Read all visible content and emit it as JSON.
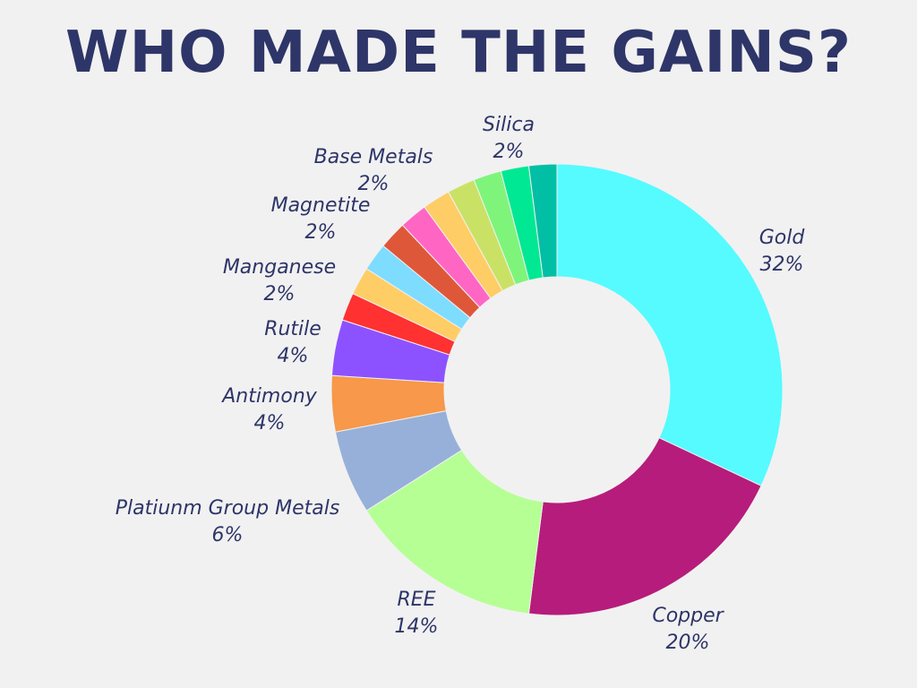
{
  "chart_data": {
    "type": "pie",
    "title": "WHO MADE THE GAINS?",
    "donut": true,
    "slices": [
      {
        "name": "Gold",
        "value_label": "32%",
        "value": 32,
        "color": "#55fbff"
      },
      {
        "name": "Copper",
        "value_label": "20%",
        "value": 20,
        "color": "#b61c7b"
      },
      {
        "name": "REE",
        "value_label": "14%",
        "value": 14,
        "color": "#b5ff95"
      },
      {
        "name": "Platiunm Group Metals",
        "value_label": "6%",
        "value": 6,
        "color": "#97b0d9"
      },
      {
        "name": "Antimony",
        "value_label": "4%",
        "value": 4,
        "color": "#f7984a"
      },
      {
        "name": "Rutile",
        "value_label": "4%",
        "value": 4,
        "color": "#8d52ff"
      },
      {
        "name": "",
        "value_label": "",
        "value": 2,
        "color": "#ff3131"
      },
      {
        "name": "Manganese",
        "value_label": "2%",
        "value": 2,
        "color": "#ffcd66"
      },
      {
        "name": "",
        "value_label": "",
        "value": 2,
        "color": "#7edcff"
      },
      {
        "name": "Magnetite",
        "value_label": "2%",
        "value": 2,
        "color": "#df5739"
      },
      {
        "name": "",
        "value_label": "",
        "value": 2,
        "color": "#ff66c4"
      },
      {
        "name": "Base Metals",
        "value_label": "2%",
        "value": 2,
        "color": "#ffcd66"
      },
      {
        "name": "",
        "value_label": "",
        "value": 2,
        "color": "#c9e265"
      },
      {
        "name": "",
        "value_label": "",
        "value": 2,
        "color": "#7ef57a"
      },
      {
        "name": "Silica",
        "value_label": "2%",
        "value": 2,
        "color": "#00e893"
      },
      {
        "name": "",
        "value_label": "",
        "value": 2,
        "color": "#00bfa5"
      }
    ]
  }
}
